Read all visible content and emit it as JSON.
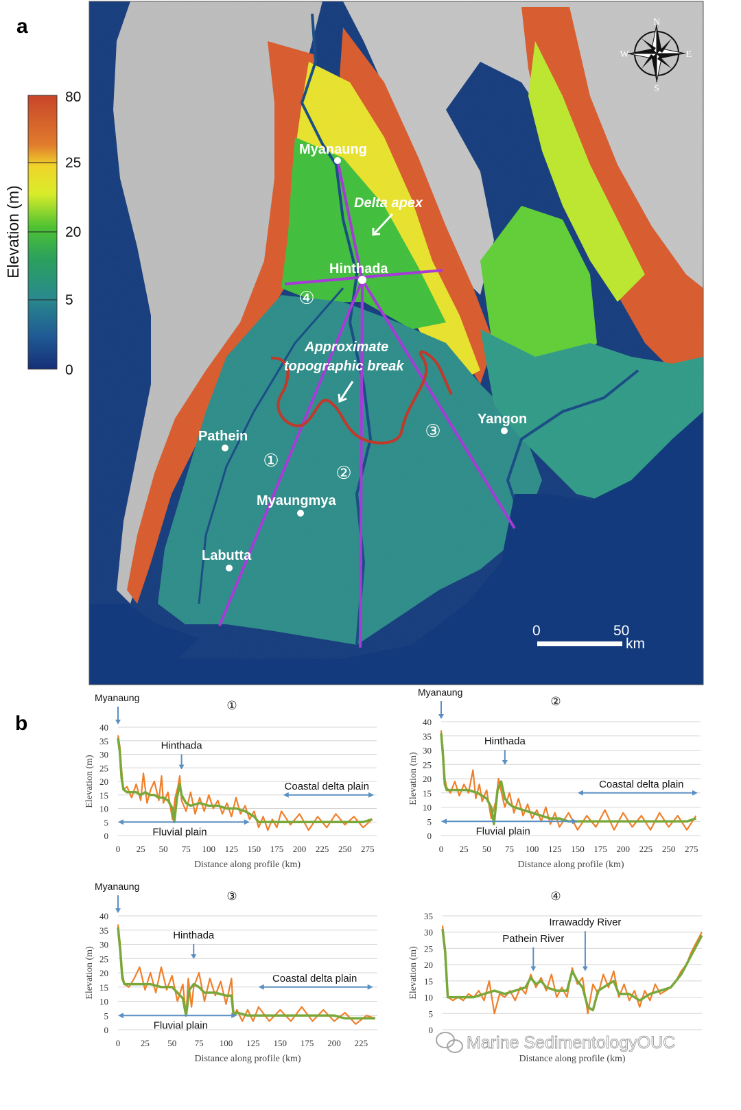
{
  "panel_a": {
    "label": "a",
    "colorbar": {
      "title": "Elevation (m)",
      "ticks": [
        "80",
        "25",
        "20",
        "5",
        "0"
      ],
      "colors": [
        "#d2562a",
        "#e8a02a",
        "#f2e628",
        "#6fcf2f",
        "#2ea35a",
        "#2c8a8a",
        "#1f4f8f",
        "#17337a"
      ]
    },
    "compass": {
      "n": "N",
      "s": "S",
      "e": "E",
      "w": "W"
    },
    "places": {
      "myanaung": "Myanaung",
      "hinthada": "Hinthada",
      "pathein": "Pathein",
      "myaungmya": "Myaungmya",
      "labutta": "Labutta",
      "yangon": "Yangon"
    },
    "annotations": {
      "delta_apex": "Delta apex",
      "break_line1": "Approximate",
      "break_line2": "topographic break"
    },
    "profile_markers": [
      "①",
      "②",
      "③",
      "④"
    ],
    "scale": {
      "zero": "0",
      "fifty": "50",
      "unit": "km"
    },
    "colors": {
      "sea": "#123a7a",
      "profile_line": "#a63bd8",
      "break_line": "#c0392b"
    }
  },
  "panel_b": {
    "label": "b",
    "watermark": "Marine SedimentologyOUC",
    "colors": {
      "orange": "#f07f2a",
      "green": "#79a83a",
      "arrow": "#5b8fc2",
      "grid": "#d4d4d4"
    }
  },
  "chart_data": [
    {
      "type": "line",
      "title": "①",
      "xlabel": "Distance along profile (km)",
      "ylabel": "Elevation (m)",
      "x_ticks": [
        "0",
        "25",
        "50",
        "75",
        "100",
        "125",
        "150",
        "175",
        "200",
        "225",
        "250",
        "275"
      ],
      "y_ticks": [
        "0",
        "5",
        "10",
        "15",
        "20",
        "25",
        "30",
        "35",
        "40"
      ],
      "xlim": [
        0,
        285
      ],
      "ylim": [
        0,
        40
      ],
      "series": [
        {
          "name": "raw",
          "color": "#f07f2a",
          "x": [
            0,
            2,
            4,
            6,
            10,
            15,
            20,
            25,
            28,
            32,
            36,
            40,
            45,
            48,
            50,
            55,
            60,
            63,
            66,
            68,
            70,
            75,
            80,
            85,
            90,
            95,
            100,
            105,
            110,
            115,
            120,
            125,
            130,
            135,
            140,
            145,
            150,
            155,
            160,
            165,
            170,
            175,
            180,
            190,
            200,
            210,
            220,
            230,
            240,
            250,
            260,
            270,
            280
          ],
          "y": [
            37,
            33,
            24,
            17,
            18,
            14,
            19,
            13,
            23,
            12,
            17,
            20,
            13,
            22,
            12,
            16,
            6,
            14,
            18,
            22,
            13,
            9,
            16,
            8,
            14,
            9,
            15,
            10,
            13,
            8,
            12,
            7,
            14,
            8,
            11,
            6,
            9,
            3,
            7,
            2,
            6,
            3,
            9,
            4,
            8,
            2,
            7,
            3,
            8,
            4,
            7,
            3,
            6
          ]
        },
        {
          "name": "smoothed",
          "color": "#79a83a",
          "x": [
            0,
            2,
            4,
            6,
            10,
            15,
            20,
            25,
            30,
            35,
            40,
            45,
            50,
            55,
            60,
            62,
            65,
            68,
            70,
            75,
            80,
            90,
            100,
            110,
            120,
            130,
            140,
            150,
            155,
            160,
            170,
            180,
            190,
            200,
            210,
            220,
            230,
            240,
            250,
            260,
            270,
            280
          ],
          "y": [
            36,
            31,
            21,
            17,
            16,
            16,
            16,
            15,
            16,
            15,
            15,
            14,
            14,
            13,
            10,
            5,
            14,
            19,
            15,
            12,
            11,
            12,
            11,
            11,
            10,
            10,
            9,
            7,
            5,
            5,
            5,
            5,
            5,
            5,
            5,
            5,
            5,
            5,
            5,
            5,
            5,
            6
          ]
        }
      ],
      "annotations": [
        {
          "text": "Myanaung",
          "x": 0,
          "y": 44
        },
        {
          "text": "Hinthada",
          "x": 70,
          "y": 33
        },
        {
          "text": "Coastal delta plain",
          "x": 230,
          "y": 18,
          "arrow": [
            182,
            282
          ]
        },
        {
          "text": "Fluvial plain",
          "x": 68,
          "y": 0,
          "arrow": [
            0,
            145
          ]
        }
      ]
    },
    {
      "type": "line",
      "title": "②",
      "xlabel": "Distance along profile (km)",
      "ylabel": "Elevation (m)",
      "x_ticks": [
        "0",
        "25",
        "50",
        "75",
        "100",
        "125",
        "150",
        "175",
        "200",
        "225",
        "250",
        "275"
      ],
      "y_ticks": [
        "0",
        "5",
        "10",
        "15",
        "20",
        "25",
        "30",
        "35",
        "40"
      ],
      "xlim": [
        0,
        285
      ],
      "ylim": [
        0,
        40
      ],
      "series": [
        {
          "name": "raw",
          "color": "#f07f2a",
          "x": [
            0,
            2,
            4,
            6,
            10,
            15,
            20,
            25,
            30,
            35,
            38,
            42,
            45,
            50,
            55,
            60,
            63,
            67,
            70,
            75,
            80,
            85,
            90,
            95,
            100,
            105,
            110,
            115,
            120,
            125,
            130,
            140,
            150,
            160,
            170,
            180,
            190,
            200,
            210,
            220,
            230,
            240,
            250,
            260,
            270,
            280
          ],
          "y": [
            37,
            30,
            20,
            17,
            15,
            19,
            14,
            18,
            15,
            23,
            13,
            18,
            12,
            16,
            6,
            12,
            20,
            14,
            10,
            15,
            8,
            13,
            7,
            11,
            6,
            9,
            5,
            10,
            4,
            8,
            3,
            8,
            2,
            7,
            3,
            9,
            2,
            8,
            3,
            7,
            2,
            8,
            3,
            7,
            2,
            7
          ]
        },
        {
          "name": "smoothed",
          "color": "#79a83a",
          "x": [
            0,
            2,
            4,
            6,
            10,
            20,
            30,
            40,
            50,
            55,
            58,
            62,
            66,
            70,
            75,
            80,
            90,
            100,
            110,
            120,
            130,
            140,
            150,
            160,
            170,
            180,
            190,
            200,
            210,
            220,
            230,
            240,
            250,
            260,
            270,
            280
          ],
          "y": [
            36,
            28,
            18,
            16,
            16,
            16,
            16,
            15,
            13,
            10,
            4,
            16,
            19,
            13,
            11,
            10,
            9,
            8,
            7,
            6,
            6,
            5,
            5,
            5,
            5,
            5,
            5,
            5,
            5,
            5,
            5,
            5,
            5,
            5,
            5,
            6
          ]
        }
      ],
      "annotations": [
        {
          "text": "Myanaung",
          "x": 0,
          "y": 44
        },
        {
          "text": "Hinthada",
          "x": 70,
          "y": 33
        },
        {
          "text": "Coastal delta plain",
          "x": 220,
          "y": 18,
          "arrow": [
            150,
            282
          ]
        },
        {
          "text": "Fluvial plain",
          "x": 68,
          "y": 0,
          "arrow": [
            0,
            150
          ]
        }
      ]
    },
    {
      "type": "line",
      "title": "③",
      "xlabel": "Distance along profile (km)",
      "ylabel": "Elevation (m)",
      "x_ticks": [
        "0",
        "25",
        "50",
        "75",
        "100",
        "125",
        "150",
        "175",
        "200",
        "225"
      ],
      "y_ticks": [
        "0",
        "5",
        "10",
        "15",
        "20",
        "25",
        "30",
        "35",
        "40"
      ],
      "xlim": [
        0,
        240
      ],
      "ylim": [
        0,
        40
      ],
      "series": [
        {
          "name": "raw",
          "color": "#f07f2a",
          "x": [
            0,
            2,
            4,
            6,
            10,
            15,
            20,
            25,
            30,
            35,
            40,
            45,
            50,
            55,
            60,
            63,
            65,
            68,
            70,
            75,
            80,
            85,
            90,
            95,
            100,
            105,
            107,
            110,
            115,
            120,
            125,
            130,
            140,
            150,
            160,
            170,
            180,
            190,
            200,
            210,
            220,
            230,
            238
          ],
          "y": [
            37,
            30,
            20,
            16,
            15,
            18,
            22,
            14,
            20,
            13,
            22,
            14,
            19,
            10,
            16,
            5,
            18,
            8,
            15,
            20,
            10,
            18,
            12,
            17,
            9,
            18,
            5,
            7,
            3,
            7,
            3,
            8,
            3,
            7,
            3,
            8,
            3,
            7,
            3,
            6,
            2,
            5,
            4
          ]
        },
        {
          "name": "smoothed",
          "color": "#79a83a",
          "x": [
            0,
            2,
            4,
            6,
            10,
            20,
            30,
            40,
            50,
            55,
            60,
            63,
            66,
            70,
            75,
            80,
            90,
            100,
            105,
            107,
            110,
            120,
            130,
            140,
            150,
            160,
            170,
            180,
            190,
            200,
            210,
            220,
            230,
            238
          ],
          "y": [
            36,
            28,
            18,
            16,
            16,
            16,
            16,
            15,
            15,
            13,
            11,
            5,
            14,
            16,
            15,
            13,
            13,
            12,
            12,
            5,
            6,
            5,
            5,
            5,
            5,
            5,
            5,
            5,
            5,
            5,
            4,
            4,
            4,
            4
          ]
        }
      ],
      "annotations": [
        {
          "text": "Myanaung",
          "x": 0,
          "y": 44
        },
        {
          "text": "Hinthada",
          "x": 70,
          "y": 33
        },
        {
          "text": "Coastal delta plain",
          "x": 182,
          "y": 18,
          "arrow": [
            130,
            236
          ]
        },
        {
          "text": "Fluvial plain",
          "x": 58,
          "y": 0,
          "arrow": [
            0,
            110
          ]
        }
      ]
    },
    {
      "type": "line",
      "title": "④",
      "xlabel": "Distance along profile (km)",
      "ylabel": "Elevation (m)",
      "y_ticks": [
        "0",
        "5",
        "10",
        "15",
        "20",
        "25",
        "30",
        "35"
      ],
      "xlim": [
        0,
        100
      ],
      "ylim": [
        0,
        35
      ],
      "series": [
        {
          "name": "raw",
          "color": "#f07f2a",
          "x": [
            0,
            1,
            2,
            4,
            6,
            8,
            10,
            12,
            14,
            16,
            18,
            20,
            22,
            24,
            26,
            28,
            30,
            32,
            34,
            36,
            38,
            40,
            42,
            44,
            46,
            48,
            50,
            52,
            54,
            56,
            58,
            60,
            62,
            64,
            66,
            68,
            70,
            72,
            74,
            76,
            78,
            80,
            82,
            84,
            86,
            88,
            90,
            92,
            94,
            96,
            98,
            100
          ],
          "y": [
            32,
            25,
            10,
            9,
            10,
            9,
            11,
            10,
            12,
            9,
            15,
            5,
            11,
            10,
            12,
            9,
            13,
            11,
            17,
            13,
            16,
            12,
            17,
            10,
            13,
            10,
            19,
            14,
            16,
            5,
            14,
            11,
            17,
            13,
            18,
            10,
            14,
            9,
            12,
            7,
            12,
            9,
            14,
            11,
            12,
            13,
            15,
            18,
            20,
            24,
            27,
            30
          ]
        },
        {
          "name": "smoothed",
          "color": "#79a83a",
          "x": [
            0,
            1,
            2,
            4,
            8,
            12,
            16,
            20,
            24,
            28,
            32,
            34,
            36,
            38,
            40,
            44,
            48,
            50,
            52,
            54,
            56,
            58,
            60,
            64,
            66,
            68,
            72,
            76,
            80,
            84,
            88,
            92,
            96,
            100
          ],
          "y": [
            31,
            24,
            10,
            10,
            10,
            10,
            11,
            12,
            11,
            12,
            13,
            16,
            14,
            15,
            13,
            12,
            12,
            18,
            15,
            13,
            7,
            6,
            12,
            14,
            15,
            11,
            11,
            9,
            11,
            12,
            13,
            17,
            23,
            29
          ]
        }
      ],
      "annotations": [
        {
          "text": "Pathein River",
          "x": 35,
          "y": 20
        },
        {
          "text": "Irrawaddy River",
          "x": 55,
          "y": 25
        }
      ]
    }
  ]
}
